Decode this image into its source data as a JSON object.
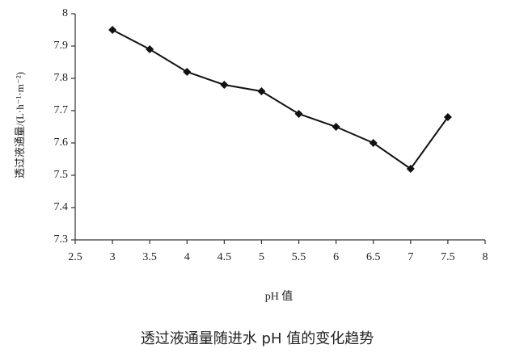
{
  "chart_data": {
    "type": "line",
    "title": "透过液通量随进水 pH 值的变化趋势",
    "x_label": "pH 值",
    "y_label": "透过液通量/(L·h⁻¹·m⁻²)",
    "x": [
      3,
      3.5,
      4,
      4.5,
      5,
      5.5,
      6,
      6.5,
      7,
      7.5
    ],
    "series": [
      {
        "color": "#111111",
        "values": [
          7.95,
          7.89,
          7.82,
          7.78,
          7.76,
          7.69,
          7.65,
          7.6,
          7.52,
          7.68
        ]
      }
    ],
    "xlim": [
      2.5,
      8
    ],
    "xticks": [
      2.5,
      3,
      3.5,
      4,
      4.5,
      5,
      5.5,
      6,
      6.5,
      7,
      7.5,
      8
    ],
    "ylim": [
      7.3,
      8
    ],
    "yticks": [
      7.3,
      7.4,
      7.5,
      7.6,
      7.7,
      7.8,
      7.9,
      8
    ],
    "grid": false
  }
}
